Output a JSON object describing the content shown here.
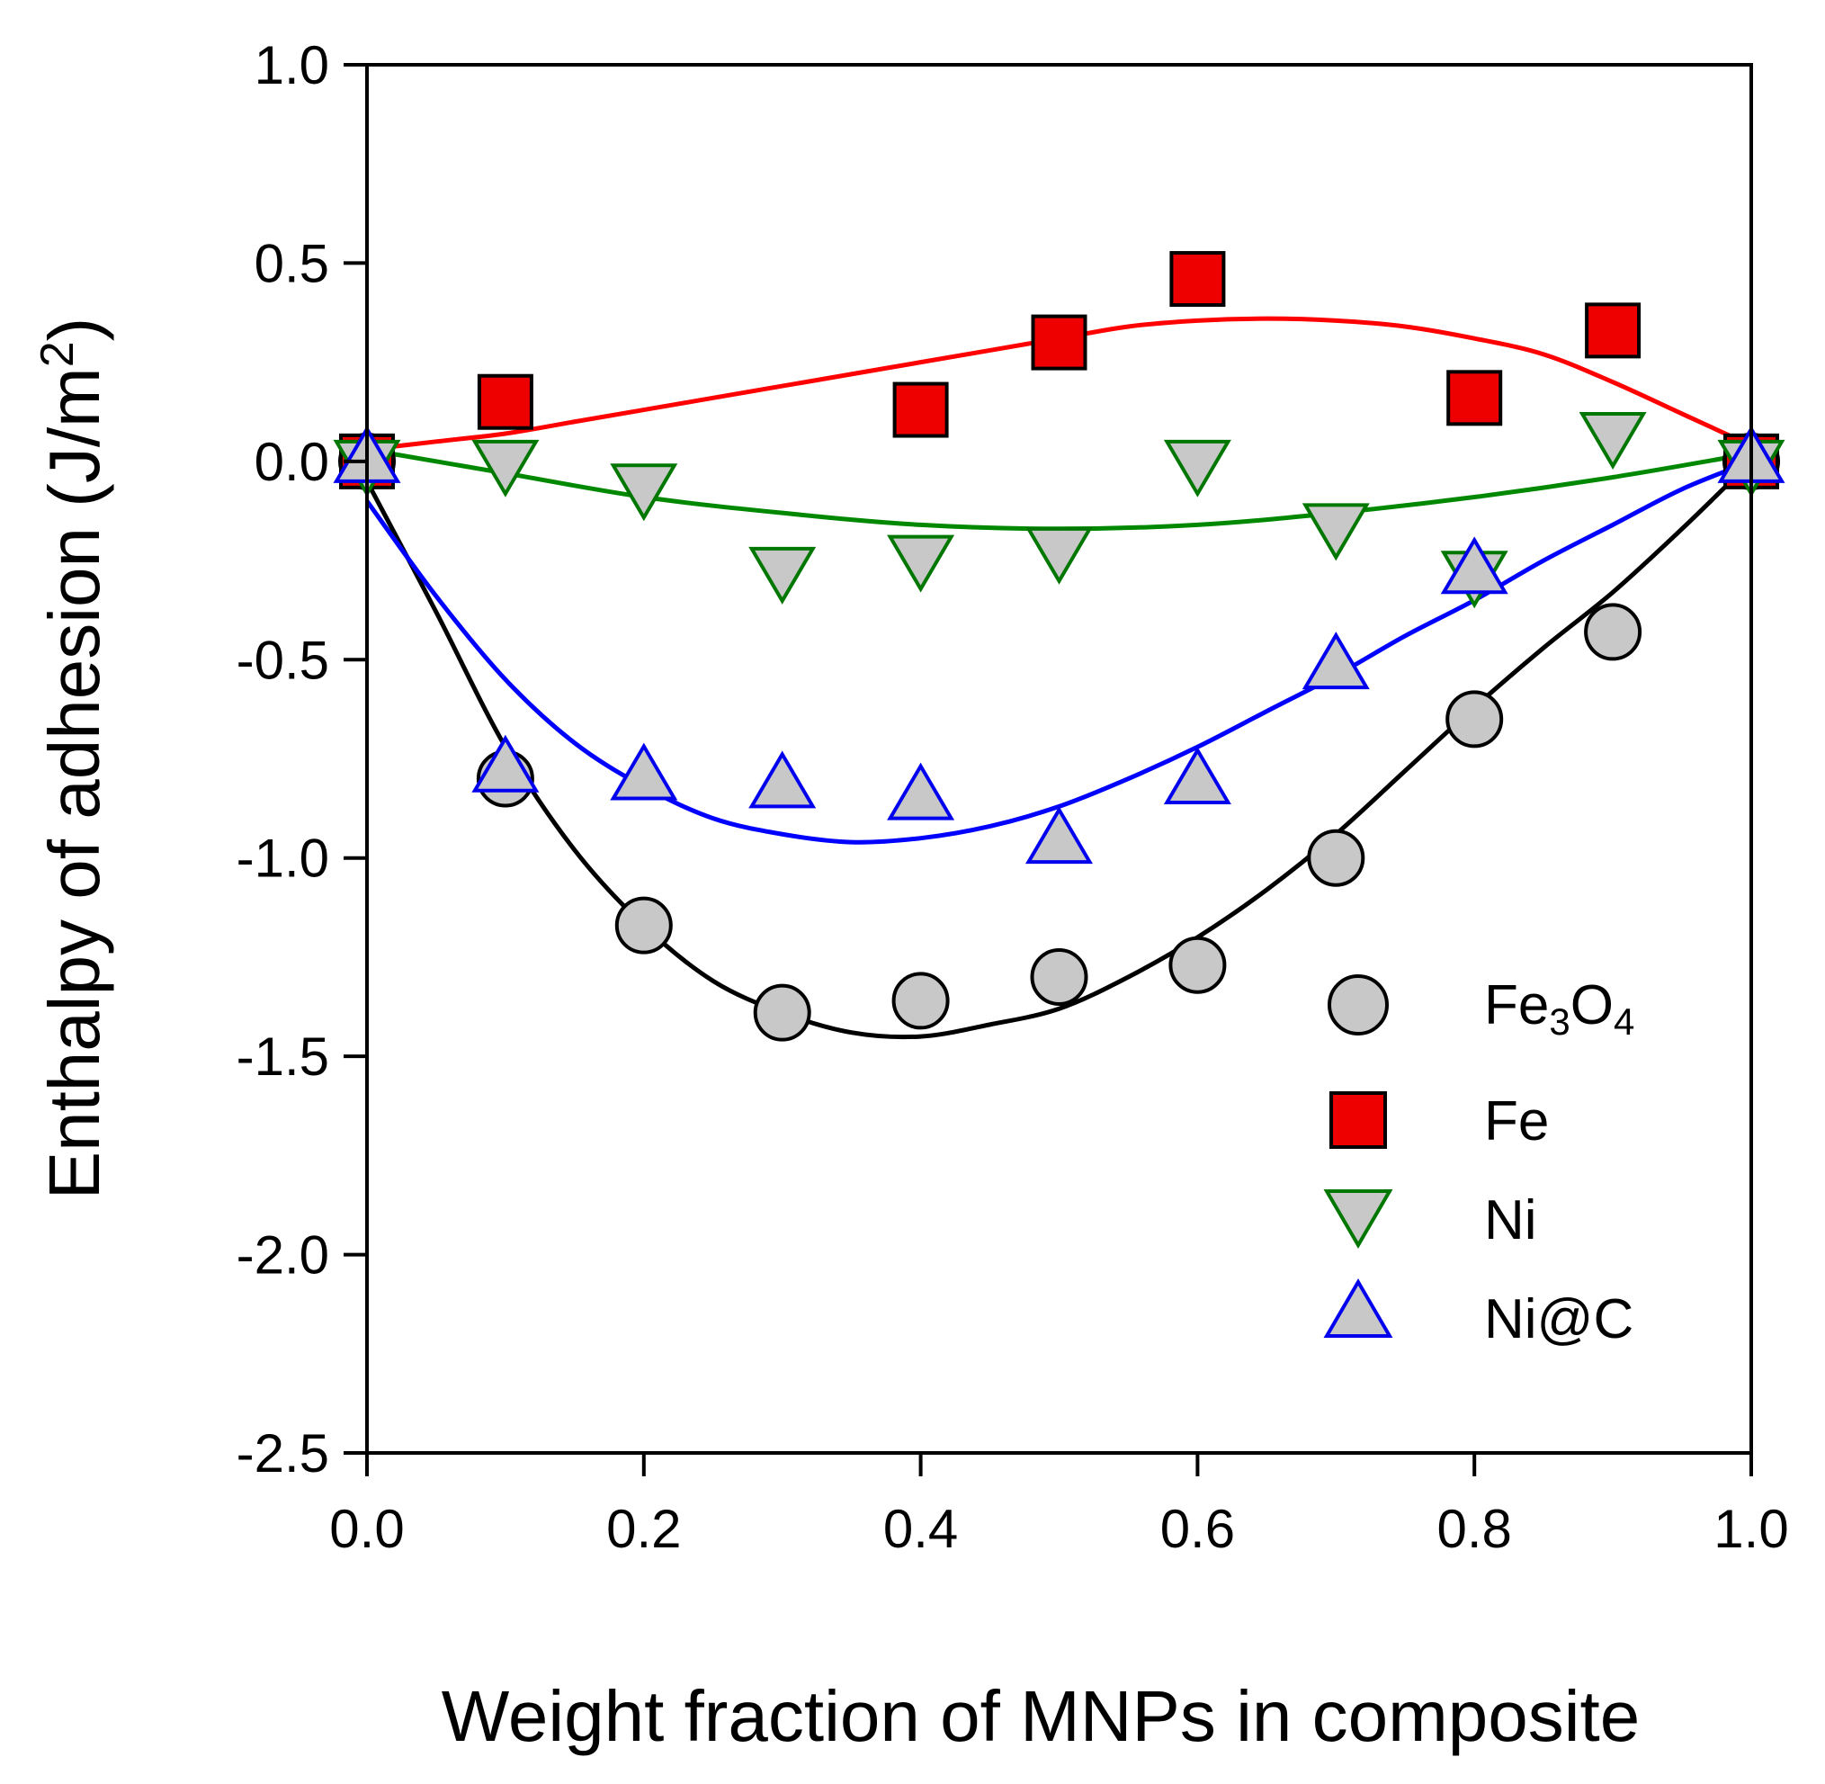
{
  "chart_data": {
    "type": "scatter",
    "xlabel": "Weight fraction of MNPs in composite",
    "ylabel": "Enthalpy of adhesion (J/m²)",
    "ylabel_main": "Enthalpy of adhesion (J/m",
    "ylabel_sup": "2",
    "ylabel_close": ")",
    "xlim": [
      0.0,
      1.0
    ],
    "ylim": [
      -2.5,
      1.0
    ],
    "xticks": [
      0.0,
      0.2,
      0.4,
      0.6,
      0.8,
      1.0
    ],
    "yticks": [
      1.0,
      0.5,
      0.0,
      -0.5,
      -1.0,
      -1.5,
      -2.0,
      -2.5
    ],
    "xtick_labels": [
      "0.0",
      "0.2",
      "0.4",
      "0.6",
      "0.8",
      "1.0"
    ],
    "ytick_labels": [
      "1.0",
      "0.5",
      "0.0",
      "-0.5",
      "-1.0",
      "-1.5",
      "-2.0",
      "-2.5"
    ],
    "grid": false,
    "legend_position": "bottom-right",
    "series": [
      {
        "name": "Fe3O4",
        "label_parts": [
          "Fe",
          "3",
          "O",
          "4"
        ],
        "marker": "circle",
        "fill": "#c8c8c8",
        "edge": "#000000",
        "line_color": "#000000",
        "x": [
          0.0,
          0.1,
          0.2,
          0.3,
          0.4,
          0.5,
          0.6,
          0.7,
          0.8,
          0.9,
          1.0
        ],
        "y": [
          0.0,
          -0.8,
          -1.17,
          -1.39,
          -1.36,
          -1.3,
          -1.27,
          -1.0,
          -0.65,
          -0.43,
          0.0
        ],
        "fit_x": [
          0.0,
          0.05,
          0.1,
          0.15,
          0.2,
          0.25,
          0.3,
          0.35,
          0.4,
          0.45,
          0.5,
          0.55,
          0.6,
          0.65,
          0.7,
          0.75,
          0.8,
          0.85,
          0.9,
          0.95,
          1.0
        ],
        "fit_y": [
          -0.05,
          -0.38,
          -0.72,
          -0.98,
          -1.17,
          -1.31,
          -1.39,
          -1.44,
          -1.45,
          -1.42,
          -1.38,
          -1.3,
          -1.2,
          -1.08,
          -0.94,
          -0.78,
          -0.62,
          -0.47,
          -0.33,
          -0.17,
          0.0
        ]
      },
      {
        "name": "Fe",
        "label_parts": [
          "Fe"
        ],
        "marker": "square",
        "fill": "#ee0000",
        "edge": "#000000",
        "line_color": "#ff0000",
        "x": [
          0.0,
          0.1,
          0.4,
          0.5,
          0.6,
          0.8,
          0.9,
          1.0
        ],
        "y": [
          0.0,
          0.15,
          0.13,
          0.3,
          0.46,
          0.16,
          0.33,
          0.0
        ],
        "fit_x": [
          0.0,
          0.05,
          0.1,
          0.15,
          0.2,
          0.25,
          0.3,
          0.35,
          0.4,
          0.45,
          0.5,
          0.55,
          0.6,
          0.65,
          0.7,
          0.75,
          0.8,
          0.85,
          0.9,
          0.95,
          1.0
        ],
        "fit_y": [
          0.03,
          0.05,
          0.07,
          0.1,
          0.13,
          0.16,
          0.19,
          0.22,
          0.25,
          0.28,
          0.31,
          0.34,
          0.355,
          0.36,
          0.355,
          0.34,
          0.31,
          0.27,
          0.2,
          0.12,
          0.04
        ]
      },
      {
        "name": "Ni",
        "label_parts": [
          "Ni"
        ],
        "marker": "triangle-down",
        "fill": "#c8c8c8",
        "edge": "#007700",
        "line_color": "#008800",
        "x": [
          0.0,
          0.1,
          0.2,
          0.3,
          0.4,
          0.5,
          0.6,
          0.7,
          0.8,
          0.9,
          1.0
        ],
        "y": [
          0.0,
          0.0,
          -0.06,
          -0.27,
          -0.24,
          -0.22,
          0.0,
          -0.16,
          -0.28,
          0.07,
          0.0
        ],
        "fit_x": [
          0.0,
          0.1,
          0.2,
          0.3,
          0.4,
          0.5,
          0.6,
          0.7,
          0.8,
          0.9,
          1.0
        ],
        "fit_y": [
          0.03,
          -0.03,
          -0.09,
          -0.13,
          -0.16,
          -0.17,
          -0.16,
          -0.13,
          -0.09,
          -0.04,
          0.02
        ]
      },
      {
        "name": "Ni@C",
        "label_parts": [
          "Ni@C"
        ],
        "marker": "triangle-up",
        "fill": "#c8c8c8",
        "edge": "#0000ee",
        "line_color": "#0000ff",
        "x": [
          0.0,
          0.1,
          0.2,
          0.3,
          0.4,
          0.5,
          0.6,
          0.7,
          0.8,
          1.0
        ],
        "y": [
          0.0,
          -0.78,
          -0.8,
          -0.82,
          -0.85,
          -0.96,
          -0.81,
          -0.52,
          -0.28,
          0.0
        ],
        "fit_x": [
          0.0,
          0.05,
          0.1,
          0.15,
          0.2,
          0.25,
          0.3,
          0.35,
          0.4,
          0.45,
          0.5,
          0.55,
          0.6,
          0.65,
          0.7,
          0.75,
          0.8,
          0.85,
          0.9,
          0.95,
          1.0
        ],
        "fit_y": [
          -0.1,
          -0.34,
          -0.55,
          -0.71,
          -0.82,
          -0.9,
          -0.94,
          -0.96,
          -0.95,
          -0.92,
          -0.87,
          -0.8,
          -0.72,
          -0.63,
          -0.54,
          -0.44,
          -0.35,
          -0.25,
          -0.16,
          -0.07,
          0.0
        ]
      }
    ]
  }
}
